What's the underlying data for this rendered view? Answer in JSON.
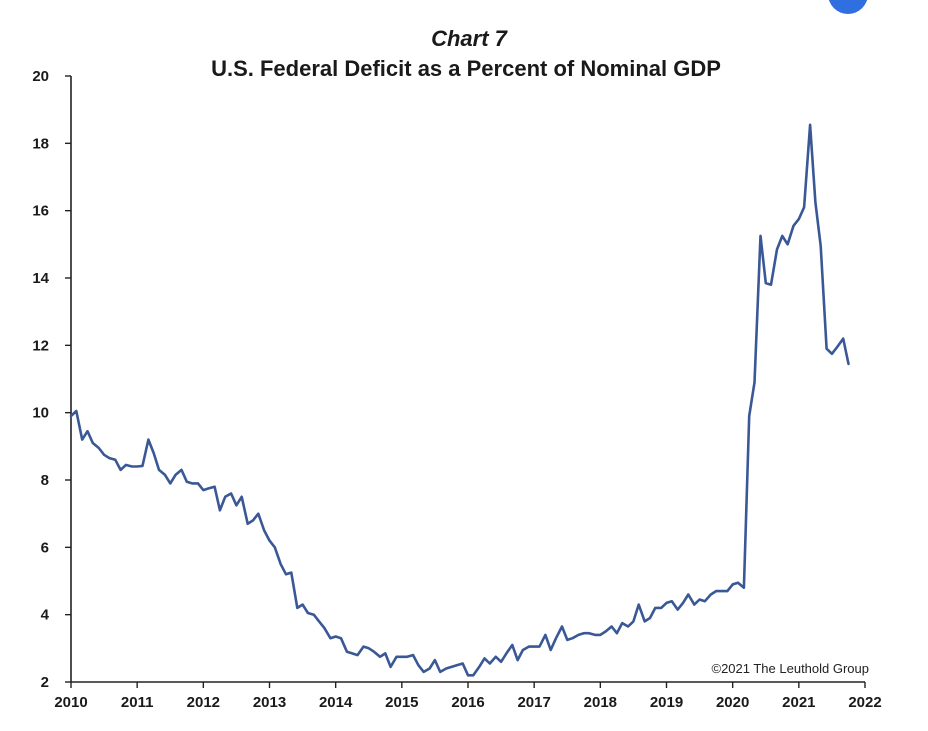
{
  "chart_data": {
    "type": "line",
    "title": "Chart 7",
    "subtitle": "U.S. Federal Deficit as a Percent of Nominal GDP",
    "xlabel": "",
    "ylabel": "",
    "xlim": [
      2010,
      2022
    ],
    "ylim": [
      2,
      20
    ],
    "x_ticks": [
      "2010",
      "2011",
      "2012",
      "2013",
      "2014",
      "2015",
      "2016",
      "2017",
      "2018",
      "2019",
      "2020",
      "2021",
      "2022"
    ],
    "y_ticks": [
      "2",
      "4",
      "6",
      "8",
      "10",
      "12",
      "14",
      "16",
      "18",
      "20"
    ],
    "grid": false,
    "annotation": "©2021 The Leuthold Group",
    "colors": {
      "line": "#3a5896",
      "accent_dot": "#2f6fe0"
    },
    "series": [
      {
        "x": [
          2010.0,
          2010.08,
          2010.17,
          2010.25,
          2010.33,
          2010.42,
          2010.5,
          2010.58,
          2010.67,
          2010.75,
          2010.83,
          2010.92,
          2011.0,
          2011.08,
          2011.17,
          2011.25,
          2011.33,
          2011.42,
          2011.5,
          2011.58,
          2011.67,
          2011.75,
          2011.83,
          2011.92,
          2012.0,
          2012.08,
          2012.17,
          2012.25,
          2012.33,
          2012.42,
          2012.5,
          2012.58,
          2012.67,
          2012.75,
          2012.83,
          2012.92,
          2013.0,
          2013.08,
          2013.17,
          2013.25,
          2013.33,
          2013.42,
          2013.5,
          2013.58,
          2013.67,
          2013.75,
          2013.83,
          2013.92,
          2014.0,
          2014.08,
          2014.17,
          2014.25,
          2014.33,
          2014.42,
          2014.5,
          2014.58,
          2014.67,
          2014.75,
          2014.83,
          2014.92,
          2015.0,
          2015.08,
          2015.17,
          2015.25,
          2015.33,
          2015.42,
          2015.5,
          2015.58,
          2015.67,
          2015.75,
          2015.83,
          2015.92,
          2016.0,
          2016.08,
          2016.17,
          2016.25,
          2016.33,
          2016.42,
          2016.5,
          2016.58,
          2016.67,
          2016.75,
          2016.83,
          2016.92,
          2017.0,
          2017.08,
          2017.17,
          2017.25,
          2017.33,
          2017.42,
          2017.5,
          2017.58,
          2017.67,
          2017.75,
          2017.83,
          2017.92,
          2018.0,
          2018.08,
          2018.17,
          2018.25,
          2018.33,
          2018.42,
          2018.5,
          2018.58,
          2018.67,
          2018.75,
          2018.83,
          2018.92,
          2019.0,
          2019.08,
          2019.17,
          2019.25,
          2019.33,
          2019.42,
          2019.5,
          2019.58,
          2019.67,
          2019.75,
          2019.83,
          2019.92,
          2020.0,
          2020.08,
          2020.17,
          2020.25,
          2020.33,
          2020.42,
          2020.5,
          2020.58,
          2020.67,
          2020.75,
          2020.83,
          2020.92,
          2021.0,
          2021.08,
          2021.17,
          2021.25,
          2021.33,
          2021.42,
          2021.5,
          2021.58,
          2021.67,
          2021.75
        ],
        "values": [
          9.9,
          10.05,
          9.2,
          9.45,
          9.1,
          8.95,
          8.75,
          8.65,
          8.6,
          8.3,
          8.45,
          8.4,
          8.4,
          8.42,
          9.2,
          8.8,
          8.3,
          8.15,
          7.9,
          8.15,
          8.3,
          7.95,
          7.9,
          7.9,
          7.7,
          7.75,
          7.8,
          7.1,
          7.5,
          7.6,
          7.25,
          7.5,
          6.7,
          6.8,
          7.0,
          6.5,
          6.2,
          6.0,
          5.5,
          5.2,
          5.25,
          4.2,
          4.3,
          4.05,
          4.0,
          3.8,
          3.6,
          3.3,
          3.35,
          3.3,
          2.9,
          2.85,
          2.8,
          3.05,
          3.0,
          2.9,
          2.75,
          2.85,
          2.45,
          2.75,
          2.75,
          2.75,
          2.8,
          2.5,
          2.3,
          2.4,
          2.65,
          2.3,
          2.4,
          2.45,
          2.5,
          2.55,
          2.2,
          2.2,
          2.45,
          2.7,
          2.55,
          2.75,
          2.6,
          2.85,
          3.1,
          2.65,
          2.95,
          3.05,
          3.05,
          3.05,
          3.4,
          2.95,
          3.3,
          3.65,
          3.25,
          3.3,
          3.4,
          3.45,
          3.45,
          3.4,
          3.4,
          3.5,
          3.65,
          3.45,
          3.75,
          3.65,
          3.8,
          4.3,
          3.8,
          3.9,
          4.2,
          4.2,
          4.35,
          4.4,
          4.15,
          4.35,
          4.6,
          4.3,
          4.45,
          4.4,
          4.6,
          4.7,
          4.7,
          4.7,
          4.9,
          4.95,
          4.8,
          9.9,
          10.9,
          15.25,
          13.85,
          13.8,
          14.85,
          15.25,
          15.0,
          15.55,
          15.75,
          16.1,
          18.55,
          16.25,
          14.95,
          11.9,
          11.75,
          11.95,
          12.2,
          11.45
        ]
      }
    ]
  }
}
